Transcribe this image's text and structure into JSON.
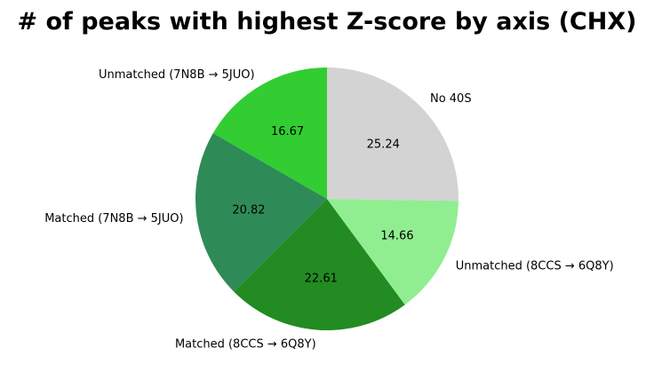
{
  "chart_data": {
    "type": "pie",
    "title": "# of peaks with highest Z-score by axis (CHX)",
    "start_angle_deg": 90,
    "direction": "counterclockwise",
    "slices": [
      {
        "label": "Unmatched (7N8B → 5JUO)",
        "value": 16.67,
        "value_label": "16.67",
        "color": "#32cd32"
      },
      {
        "label": "Matched (7N8B → 5JUO)",
        "value": 20.82,
        "value_label": "20.82",
        "color": "#2e8b57"
      },
      {
        "label": "Matched (8CCS → 6Q8Y)",
        "value": 22.61,
        "value_label": "22.61",
        "color": "#228b22"
      },
      {
        "label": "Unmatched (8CCS → 6Q8Y)",
        "value": 14.66,
        "value_label": "14.66",
        "color": "#90ee90"
      },
      {
        "label": "No 40S",
        "value": 25.24,
        "value_label": "25.24",
        "color": "#d3d3d3"
      }
    ]
  }
}
